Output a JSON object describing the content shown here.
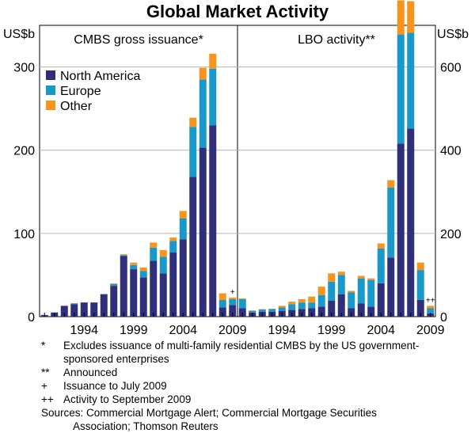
{
  "title": "Global Market Activity",
  "colors": {
    "north_america": "#30307a",
    "europe": "#1899c9",
    "other": "#f7941d",
    "grid": "#b4b4b4"
  },
  "chart_data": [
    {
      "type": "bar",
      "stacked": true,
      "panel_title": "CMBS gross issuance*",
      "unit_label": "US$b",
      "x": [
        1990,
        1991,
        1992,
        1993,
        1994,
        1995,
        1996,
        1997,
        1998,
        1999,
        2000,
        2001,
        2002,
        2003,
        2004,
        2005,
        2006,
        2007,
        2008,
        2009
      ],
      "x_tick_labels": [
        "1994",
        "1999",
        "2004",
        "2009"
      ],
      "ylim": [
        0,
        350
      ],
      "y_ticks": [
        0,
        100,
        200,
        300
      ],
      "marker": {
        "label": "+",
        "x": 2009
      },
      "legend": {
        "position": "top-left",
        "entries": [
          "North America",
          "Europe",
          "Other"
        ]
      },
      "series": [
        {
          "name": "North America",
          "values": [
            2,
            5,
            13,
            15,
            17,
            17,
            27,
            37,
            73,
            57,
            47,
            67,
            52,
            77,
            93,
            168,
            203,
            230,
            11,
            14
          ]
        },
        {
          "name": "Europe",
          "values": [
            0,
            0,
            0,
            1,
            0,
            0,
            0,
            2,
            1,
            5,
            8,
            16,
            20,
            14,
            25,
            60,
            82,
            68,
            9,
            7
          ]
        },
        {
          "name": "Other",
          "values": [
            0,
            0,
            0,
            0,
            0,
            0,
            0,
            1,
            1,
            3,
            4,
            6,
            8,
            4,
            9,
            11,
            14,
            18,
            8,
            2
          ]
        }
      ]
    },
    {
      "type": "bar",
      "stacked": true,
      "panel_title": "LBO activity**",
      "unit_label": "US$b",
      "x": [
        1990,
        1991,
        1992,
        1993,
        1994,
        1995,
        1996,
        1997,
        1998,
        1999,
        2000,
        2001,
        2002,
        2003,
        2004,
        2005,
        2006,
        2007,
        2008,
        2009
      ],
      "x_tick_labels": [
        "1994",
        "1999",
        "2004",
        "2009"
      ],
      "ylim": [
        0,
        700
      ],
      "y_ticks": [
        0,
        200,
        400,
        600
      ],
      "marker": {
        "label": "++",
        "x": 2009
      },
      "series": [
        {
          "name": "North America",
          "values": [
            20,
            10,
            12,
            12,
            14,
            16,
            18,
            20,
            24,
            38,
            54,
            20,
            32,
            24,
            80,
            142,
            416,
            452,
            40,
            8
          ]
        },
        {
          "name": "Europe",
          "values": [
            22,
            4,
            5,
            6,
            8,
            14,
            16,
            14,
            28,
            46,
            46,
            38,
            60,
            64,
            84,
            168,
            262,
            230,
            72,
            12
          ]
        },
        {
          "name": "Other",
          "values": [
            2,
            1,
            1,
            1,
            4,
            6,
            8,
            14,
            20,
            20,
            8,
            4,
            6,
            4,
            12,
            18,
            82,
            76,
            18,
            6
          ]
        }
      ]
    }
  ],
  "notes": [
    {
      "symbol": "*",
      "text": "Excludes issuance of multi-family residential CMBS by the US government-sponsored enterprises"
    },
    {
      "symbol": "**",
      "text": "Announced"
    },
    {
      "symbol": "+",
      "text": "Issuance to July 2009"
    },
    {
      "symbol": "++",
      "text": "Activity to September 2009"
    }
  ],
  "sources": {
    "label": "Sources:",
    "line1": "Commercial Mortgage Alert; Commercial Mortgage Securities",
    "line2": "Association; Thomson Reuters"
  }
}
